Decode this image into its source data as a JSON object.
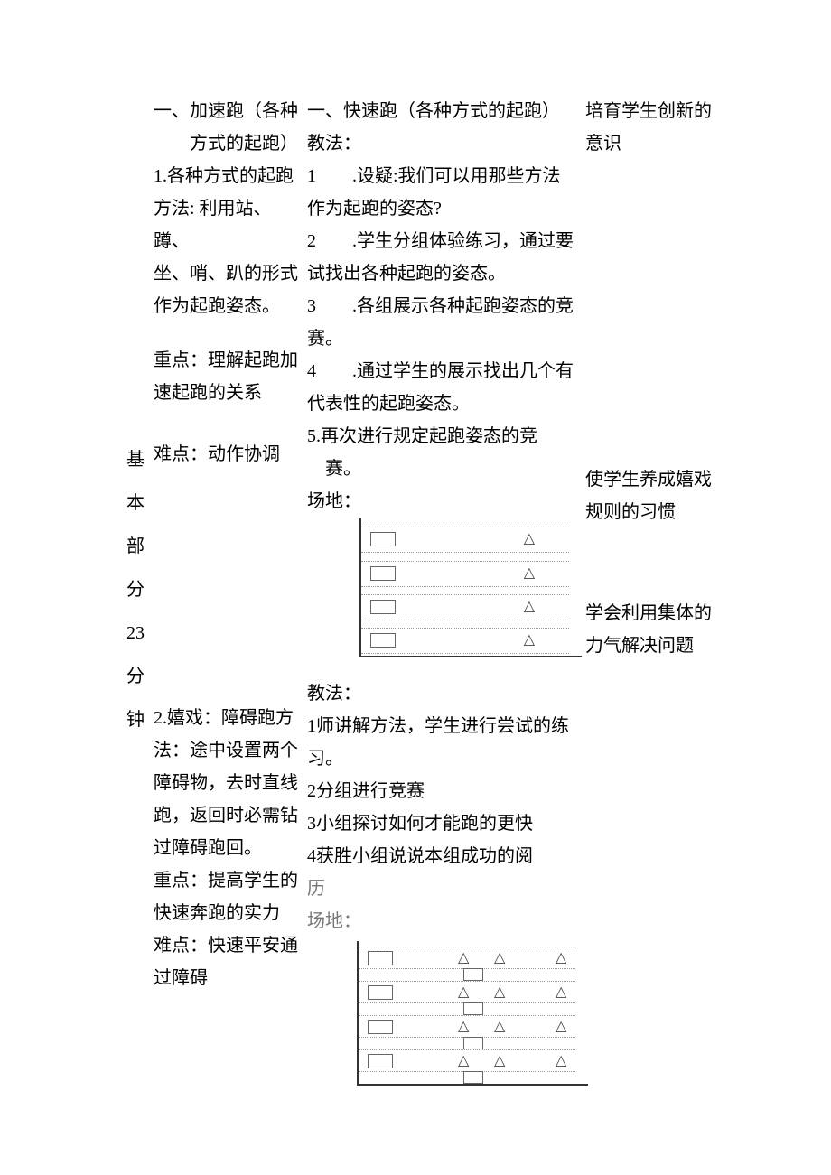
{
  "sideLabel": {
    "c1": "基",
    "c2": "本",
    "c3": "部",
    "c4": "分",
    "c5": "23",
    "c6": "分",
    "c7": "钟"
  },
  "colA": {
    "block1": "一、加速跑（各种\n　　方式的起跑）\n1.各种方式的起跑\n方法: 利用站、蹲、\n坐、哨、趴的形式\n作为起跑姿态。",
    "block2": "重点：理解起跑加\n速起跑的关系",
    "block3": "难点：动作协调",
    "block4": "2.嬉戏：障碍跑方\n法：途中设置两个\n障碍物，去时直线\n跑，返回时必需钻\n过障碍跑回。\n重点：提高学生的\n快速奔跑的实力\n难点：快速平安通\n过障碍"
  },
  "colB": {
    "title1": "一、快速跑（各种方式的起跑）",
    "lead1": "教法：",
    "item1_idx": "1",
    "item1_txt": "　　.设疑:我们可以用那些方法\n作为起跑的姿态?",
    "item2_idx": "2",
    "item2_txt": "　　.学生分组体验练习，通过要\n试找出各种起跑的姿态。",
    "item3_idx": "3",
    "item3_txt": "　　.各组展示各种起跑姿态的竞\n赛。",
    "item4_idx": "4",
    "item4_txt": "　　.通过学生的展示找出几个有\n代表性的起跑姿态。",
    "item5": "5.再次进行规定起跑姿态的竞\n　赛。",
    "field1_label": "场地：",
    "lead2": "教法：",
    "step2_1": "1师讲解方法，学生进行尝试的练\n习。",
    "step2_2": "2分组进行竞赛",
    "step2_3": "3小组探讨如何才能跑的更快",
    "step2_4": "4获胜小组说说本组成功的阅",
    "step2_5": "历",
    "field2_label": "场地：",
    "diagram1": {
      "lanes": 4,
      "triangle": "△",
      "lane_tops": [
        10,
        48,
        85,
        122
      ],
      "bg": "#ffffff",
      "axis_color": "#333333",
      "dot_color": "#9a9a9a",
      "box_border": "#666666"
    },
    "diagram2": {
      "lanes": 4,
      "triangle": "△",
      "lane_tops": [
        6,
        44,
        82,
        120
      ],
      "bg": "#ffffff",
      "axis_color": "#333333",
      "dot_color": "#9a9a9a",
      "box_border": "#666666"
    }
  },
  "colC": {
    "c1": "培育学生创新的\n意识",
    "c2": "使学生养成嬉戏\n规则的习惯",
    "c3": "学会利用集体的\n力气解决问题"
  }
}
